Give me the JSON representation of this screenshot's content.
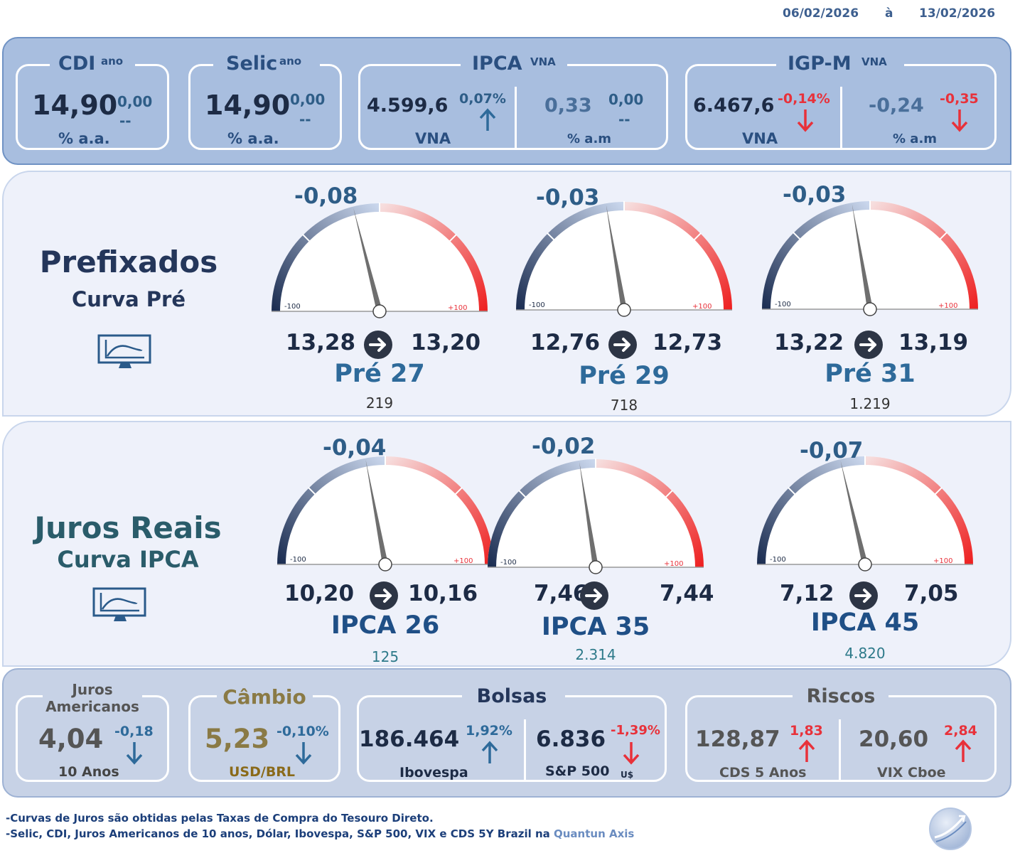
{
  "header": {
    "date_start": "06/02/2026",
    "date_sep": "à",
    "date_end": "13/02/2026"
  },
  "top": {
    "cdi": {
      "title": "CDI",
      "sup": "ano",
      "value": "14,90",
      "delta": "0,00",
      "trend": "--",
      "unit": "% a.a."
    },
    "selic": {
      "title": "Selic",
      "sup": "ano",
      "value": "14,90",
      "delta": "0,00",
      "trend": "--",
      "unit": "% a.a."
    },
    "ipca": {
      "title": "IPCA",
      "sup": "VNA",
      "vna_value": "4.599,6",
      "vna_change": "0,07%",
      "vna_label": "VNA",
      "am_value": "0,33",
      "am_delta": "0,00",
      "am_trend": "--",
      "am_label": "% a.m"
    },
    "igpm": {
      "title": "IGP-M",
      "sup": "VNA",
      "vna_value": "6.467,6",
      "vna_change": "-0,14%",
      "vna_label": "VNA",
      "am_value": "-0,24",
      "am_change": "-0,35",
      "am_label": "% a.m"
    }
  },
  "prefixados": {
    "title": "Prefixados",
    "subtitle": "Curva Pré",
    "icon": "monitor-chart-icon",
    "gauges": [
      {
        "delta": "-0,08",
        "from": "13,28",
        "to": "13,20",
        "name": "Pré 27",
        "days": "219",
        "min": "-100",
        "max": "+100",
        "needle_value": -8
      },
      {
        "delta": "-0,03",
        "from": "12,76",
        "to": "12,73",
        "name": "Pré 29",
        "days": "718",
        "min": "-100",
        "max": "+100",
        "needle_value": -3
      },
      {
        "delta": "-0,03",
        "from": "13,22",
        "to": "13,19",
        "name": "Pré 31",
        "days": "1.219",
        "min": "-100",
        "max": "+100",
        "needle_value": -3
      }
    ]
  },
  "juros_reais": {
    "title": "Juros Reais",
    "subtitle": "Curva IPCA",
    "icon": "monitor-chart-icon",
    "gauges": [
      {
        "delta": "-0,04",
        "from": "10,20",
        "to": "10,16",
        "name": "IPCA 26",
        "days": "125",
        "min": "-100",
        "max": "+100",
        "needle_value": -4
      },
      {
        "delta": "-0,02",
        "from": "7,46",
        "to": "7,44",
        "name": "IPCA 35",
        "days": "2.314",
        "min": "-100",
        "max": "+100",
        "needle_value": -2
      },
      {
        "delta": "-0,07",
        "from": "7,12",
        "to": "7,05",
        "name": "IPCA 45",
        "days": "4.820",
        "min": "-100",
        "max": "+100",
        "needle_value": -7
      }
    ]
  },
  "bottom": {
    "juros_americanos": {
      "title_1": "Juros",
      "title_2": "Americanos",
      "value": "4,04",
      "change": "-0,18",
      "label": "10 Anos"
    },
    "cambio": {
      "title": "Câmbio",
      "value": "5,23",
      "change": "-0,10%",
      "label": "USD/BRL"
    },
    "bolsas": {
      "title": "Bolsas",
      "ibov_value": "186.464",
      "ibov_change": "1,92%",
      "ibov_label": "Ibovespa",
      "sp_value": "6.836",
      "sp_change": "-1,39%",
      "sp_label": "S&P 500",
      "sp_unit": "U$"
    },
    "riscos": {
      "title": "Riscos",
      "cds_value": "128,87",
      "cds_change": "1,83",
      "cds_label": "CDS 5 Anos",
      "vix_value": "20,60",
      "vix_change": "2,84",
      "vix_label": "VIX Cboe"
    }
  },
  "footer": {
    "line1": "-Curvas de Juros são obtidas pelas Taxas de Compra do Tesouro Direto.",
    "line2": "-Selic, CDI, Juros Americanos de 10 anos, Dólar, Ibovespa,  S&P 500, VIX e CDS 5Y Brazil na ",
    "line2_brand": "Quantun Axis"
  },
  "colors": {
    "up_blue": "#2e6a9a",
    "down_red": "#e8313a",
    "title_blue": "#2a5a8a",
    "gold": "#8a7a45"
  }
}
